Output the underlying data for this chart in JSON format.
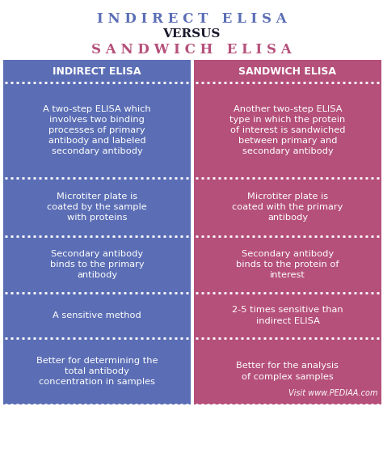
{
  "title_line1": "I N D I R E C T   E L I S A",
  "title_line2": "VERSUS",
  "title_line3": "S A N D W I C H   E L I S A",
  "title1_color": "#5b6eb5",
  "title2_color": "#1a1a2e",
  "title3_color": "#b5507a",
  "header_left": "INDIRECT ELISA",
  "header_right": "SANDWICH ELISA",
  "header_bg_left": "#5b6eb5",
  "header_bg_right": "#b5507a",
  "col_left_bg": "#5b6eb5",
  "col_right_bg": "#b5507a",
  "rows_left": [
    "A two-step ELISA which\ninvolves two binding\nprocesses of primary\nantibody and labeled\nsecondary antibody",
    "Microtiter plate is\ncoated by the sample\nwith proteins",
    "Secondary antibody\nbinds to the primary\nantibody",
    "A sensitive method",
    "Better for determining the\ntotal antibody\nconcentration in samples"
  ],
  "rows_right": [
    "Another two-step ELISA\ntype in which the protein\nof interest is sandwiched\nbetween primary and\nsecondary antibody",
    "Microtiter plate is\ncoated with the primary\nantibody",
    "Secondary antibody\nbinds to the protein of\ninterest",
    "2-5 times sensitive than\nindirect ELISA",
    "Better for the analysis\nof complex samples"
  ],
  "footer_text": "Visit www.PEDIAA.com",
  "text_color": "#ffffff",
  "background_color": "#ffffff",
  "dot_color": "#ffffff"
}
